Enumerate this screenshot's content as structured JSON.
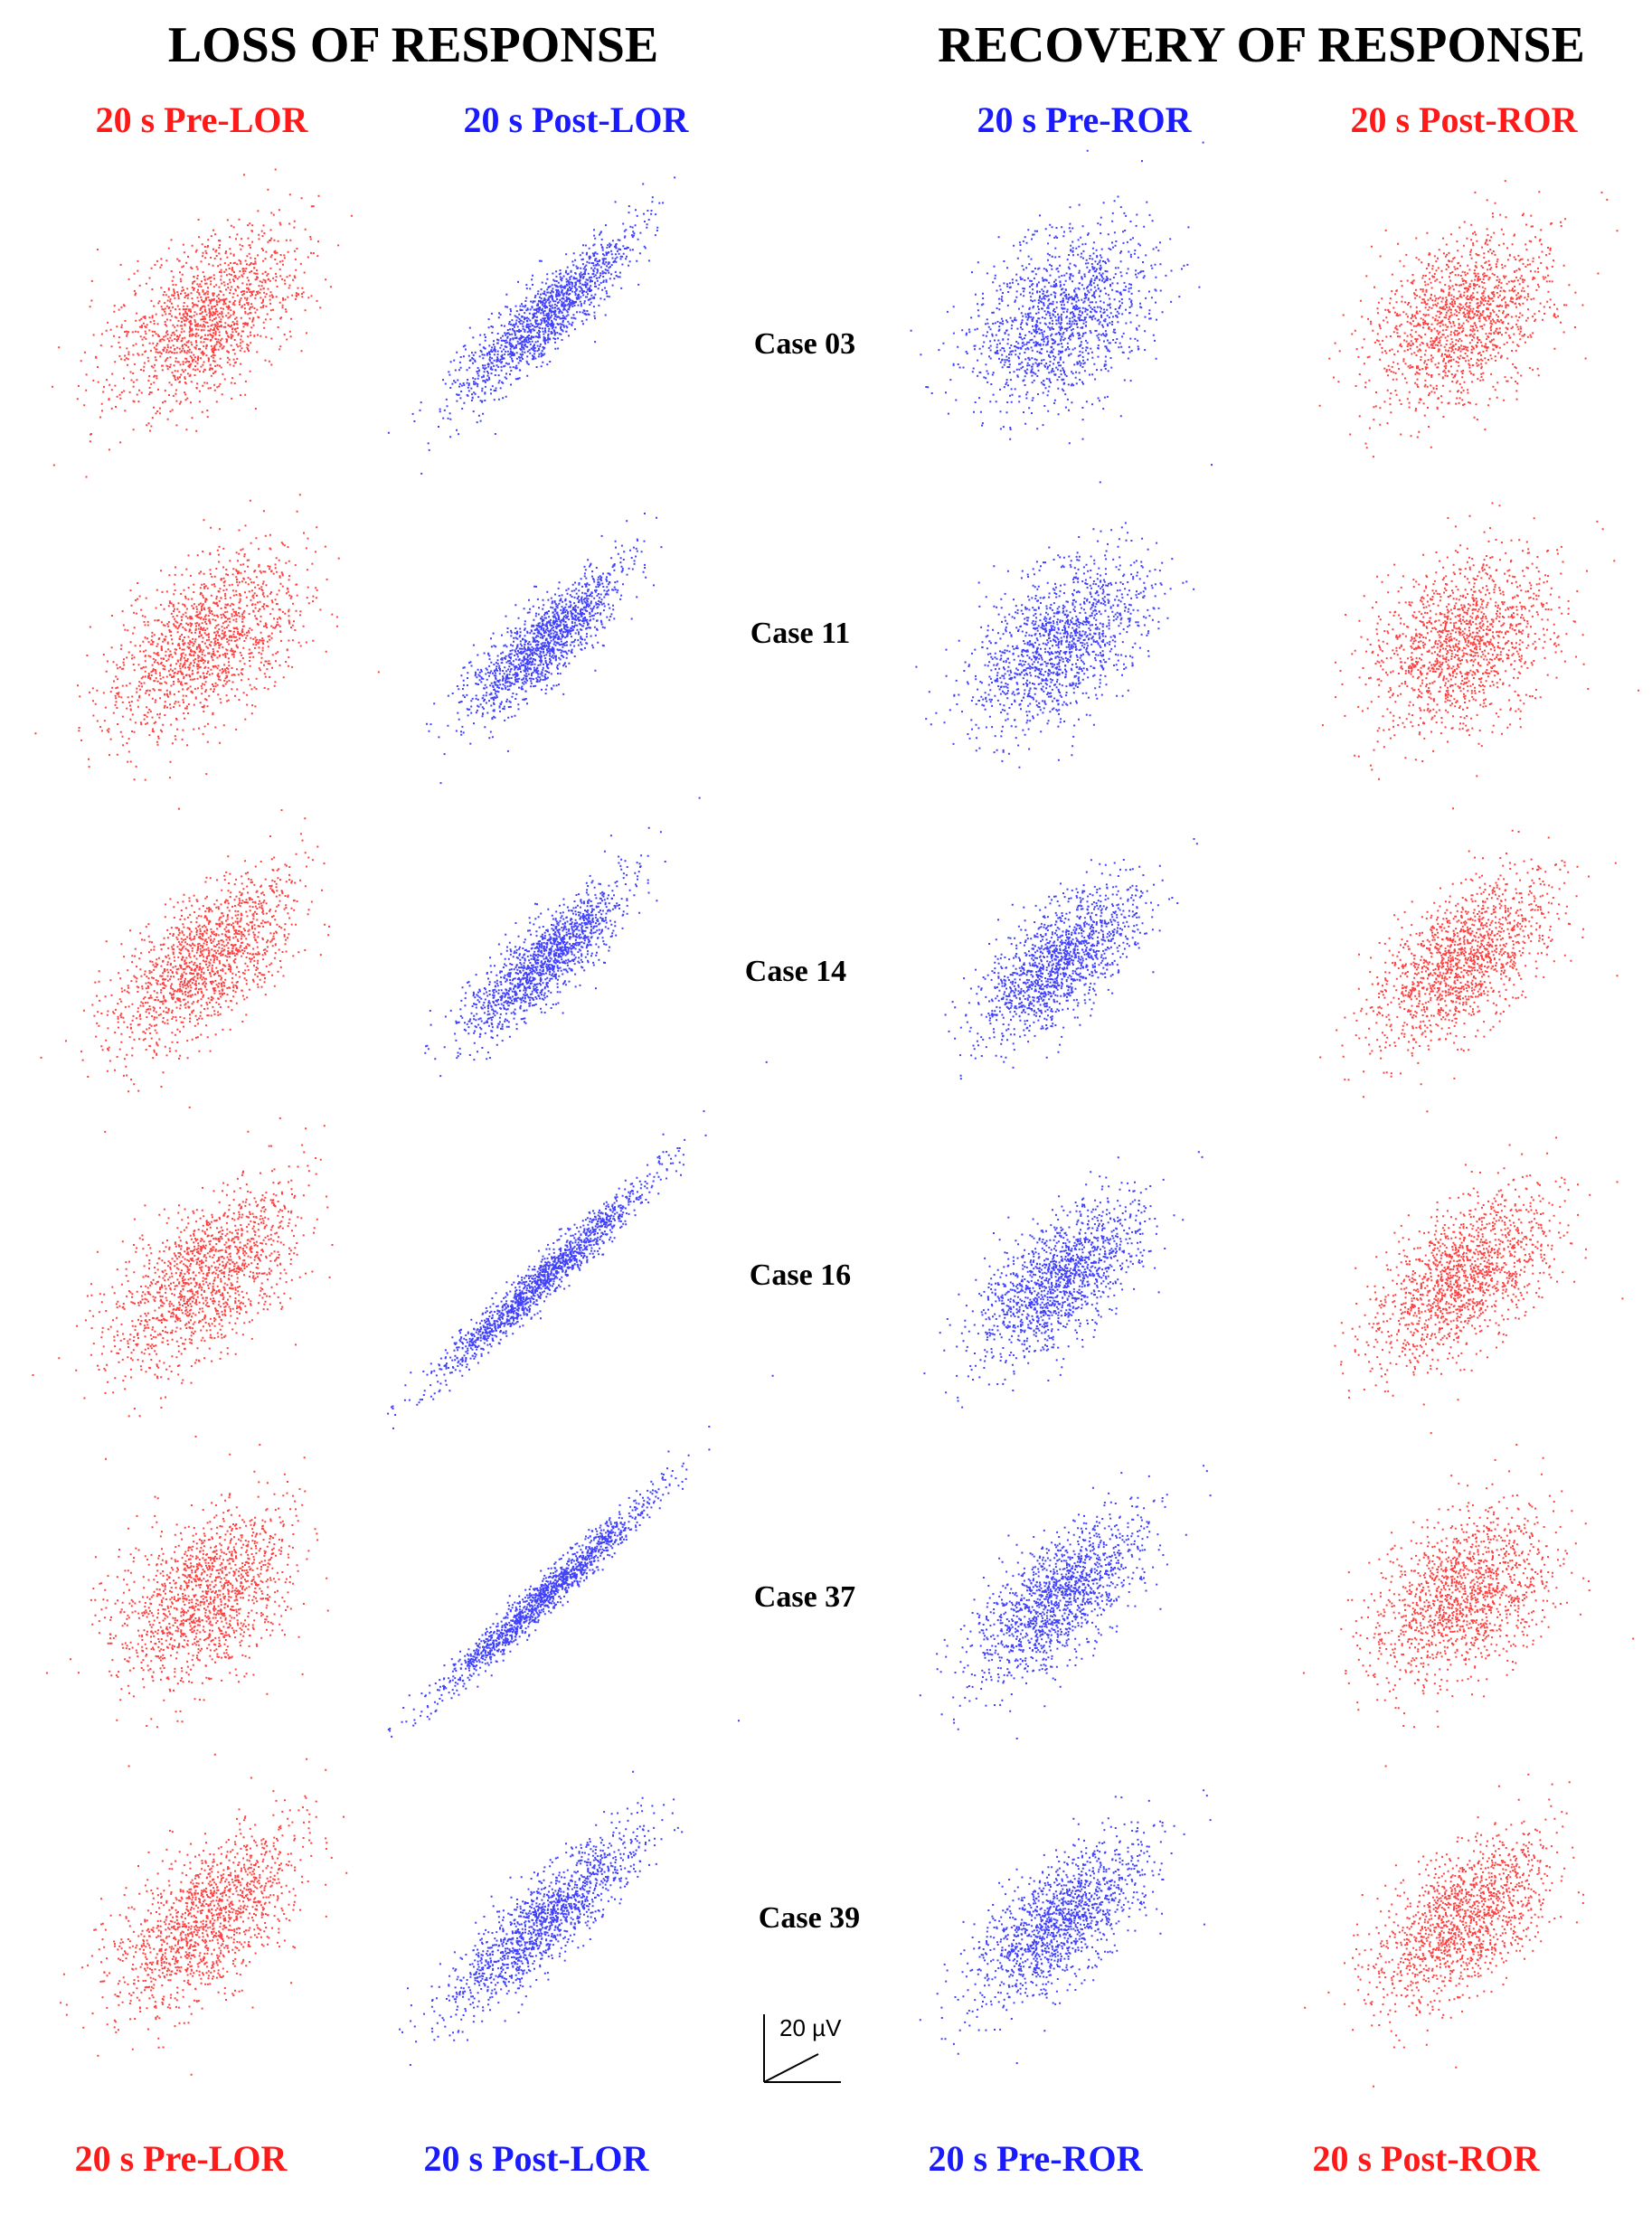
{
  "headers": {
    "loss": "LOSS OF RESPONSE",
    "recovery": "RECOVERY OF RESPONSE"
  },
  "column_labels_top": [
    "20 s Pre-LOR",
    "20 s Post-LOR",
    "20 s Pre-ROR",
    "20 s Post-ROR"
  ],
  "column_labels_bottom": [
    "20 s Pre-LOR",
    "20 s Post-LOR",
    "20 s Pre-ROR",
    "20 s Post-ROR"
  ],
  "cases": [
    "Case 03",
    "Case 11",
    "Case 14",
    "Case 16",
    "Case 37",
    "Case 39"
  ],
  "scale_bar": "20 µV"
}
